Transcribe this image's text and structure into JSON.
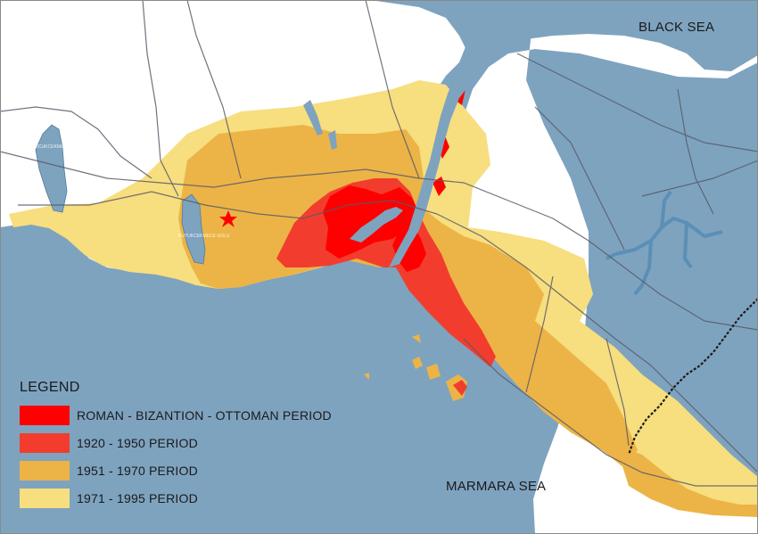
{
  "map": {
    "sea_labels": {
      "black_sea": "BLACK SEA",
      "marmara_sea": "MARMARA SEA"
    },
    "lake_labels": [
      "KUCUKCEKMECE GOLU",
      "BUYUKCEKMECE GOLU"
    ],
    "colors": {
      "sea": "#7ea3bf",
      "land": "#ffffff",
      "road": "#5a5a6a",
      "railway": "#1a1a1a"
    }
  },
  "legend": {
    "title": "LEGEND",
    "items": [
      {
        "label": "ROMAN - BIZANTION - OTTOMAN PERIOD",
        "color": "#ff0000"
      },
      {
        "label": "1920 - 1950 PERIOD",
        "color": "#f23d2e"
      },
      {
        "label": "1951 - 1970 PERIOD",
        "color": "#ecb446"
      },
      {
        "label": "1971 - 1995 PERIOD",
        "color": "#f7de7e"
      }
    ]
  }
}
